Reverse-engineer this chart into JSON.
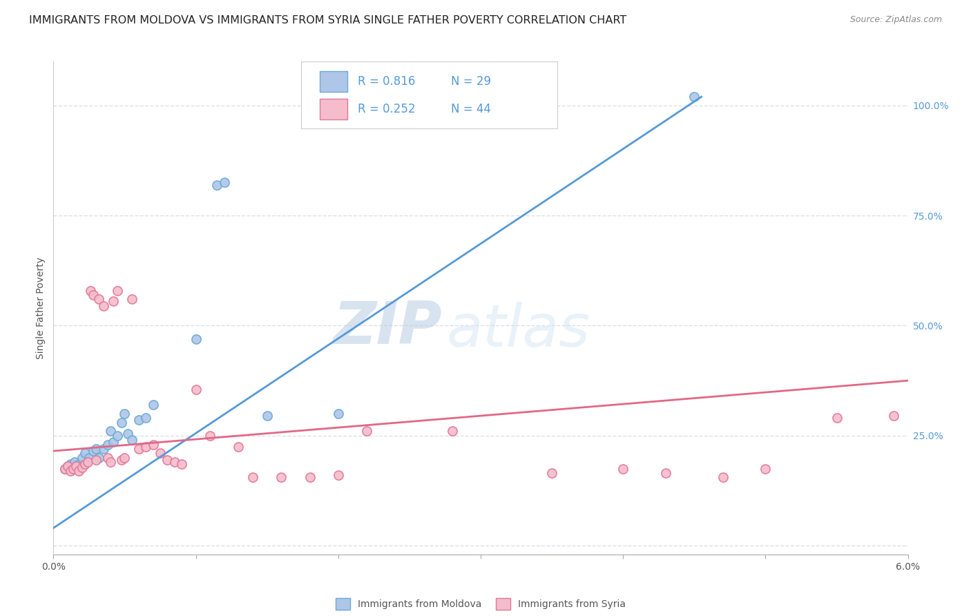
{
  "title": "IMMIGRANTS FROM MOLDOVA VS IMMIGRANTS FROM SYRIA SINGLE FATHER POVERTY CORRELATION CHART",
  "source": "Source: ZipAtlas.com",
  "ylabel": "Single Father Poverty",
  "right_yticks": [
    0.0,
    0.25,
    0.5,
    0.75,
    1.0
  ],
  "right_yticklabels": [
    "",
    "25.0%",
    "50.0%",
    "75.0%",
    "100.0%"
  ],
  "xlim": [
    0.0,
    0.06
  ],
  "ylim": [
    -0.02,
    1.1
  ],
  "moldova_color": "#aec6e8",
  "moldova_edge_color": "#6aaad4",
  "syria_color": "#f5bccb",
  "syria_edge_color": "#e07898",
  "moldova_line_color": "#5599d8",
  "syria_line_color": "#e06888",
  "moldova_R": 0.816,
  "moldova_N": 29,
  "syria_R": 0.252,
  "syria_N": 44,
  "watermark_zip": "ZIP",
  "watermark_atlas": "atlas",
  "background_color": "#ffffff",
  "grid_color": "#dde0e8",
  "title_fontsize": 11.5,
  "axis_label_fontsize": 10,
  "tick_label_fontsize": 10,
  "legend_fontsize": 12,
  "marker_size": 90,
  "moldova_scatter_x": [
    0.0008,
    0.001,
    0.0012,
    0.0015,
    0.0018,
    0.002,
    0.0022,
    0.0025,
    0.0028,
    0.003,
    0.0032,
    0.0035,
    0.0038,
    0.004,
    0.0042,
    0.0045,
    0.0048,
    0.005,
    0.0052,
    0.0055,
    0.006,
    0.0065,
    0.007,
    0.01,
    0.0115,
    0.012,
    0.015,
    0.02,
    0.045
  ],
  "moldova_scatter_y": [
    0.175,
    0.18,
    0.185,
    0.19,
    0.185,
    0.2,
    0.21,
    0.2,
    0.215,
    0.22,
    0.2,
    0.22,
    0.23,
    0.26,
    0.235,
    0.25,
    0.28,
    0.3,
    0.255,
    0.24,
    0.285,
    0.29,
    0.32,
    0.47,
    0.82,
    0.825,
    0.295,
    0.3,
    1.02
  ],
  "syria_scatter_x": [
    0.0008,
    0.001,
    0.0012,
    0.0014,
    0.0016,
    0.0018,
    0.002,
    0.0022,
    0.0024,
    0.0026,
    0.0028,
    0.003,
    0.0032,
    0.0035,
    0.0038,
    0.004,
    0.0042,
    0.0045,
    0.0048,
    0.005,
    0.0055,
    0.006,
    0.0065,
    0.007,
    0.0075,
    0.008,
    0.0085,
    0.009,
    0.01,
    0.011,
    0.013,
    0.014,
    0.016,
    0.018,
    0.02,
    0.022,
    0.028,
    0.035,
    0.04,
    0.043,
    0.047,
    0.05,
    0.055,
    0.059
  ],
  "syria_scatter_y": [
    0.175,
    0.18,
    0.17,
    0.175,
    0.18,
    0.17,
    0.178,
    0.185,
    0.19,
    0.58,
    0.57,
    0.195,
    0.56,
    0.545,
    0.2,
    0.19,
    0.555,
    0.58,
    0.195,
    0.2,
    0.56,
    0.22,
    0.225,
    0.23,
    0.21,
    0.195,
    0.19,
    0.185,
    0.355,
    0.25,
    0.225,
    0.155,
    0.155,
    0.155,
    0.16,
    0.26,
    0.26,
    0.165,
    0.175,
    0.165,
    0.155,
    0.175,
    0.29,
    0.295
  ],
  "moldova_line_x0": 0.0,
  "moldova_line_y0": 0.04,
  "moldova_line_x1": 0.0455,
  "moldova_line_y1": 1.02,
  "syria_line_x0": 0.0,
  "syria_line_y0": 0.215,
  "syria_line_x1": 0.06,
  "syria_line_y1": 0.375
}
